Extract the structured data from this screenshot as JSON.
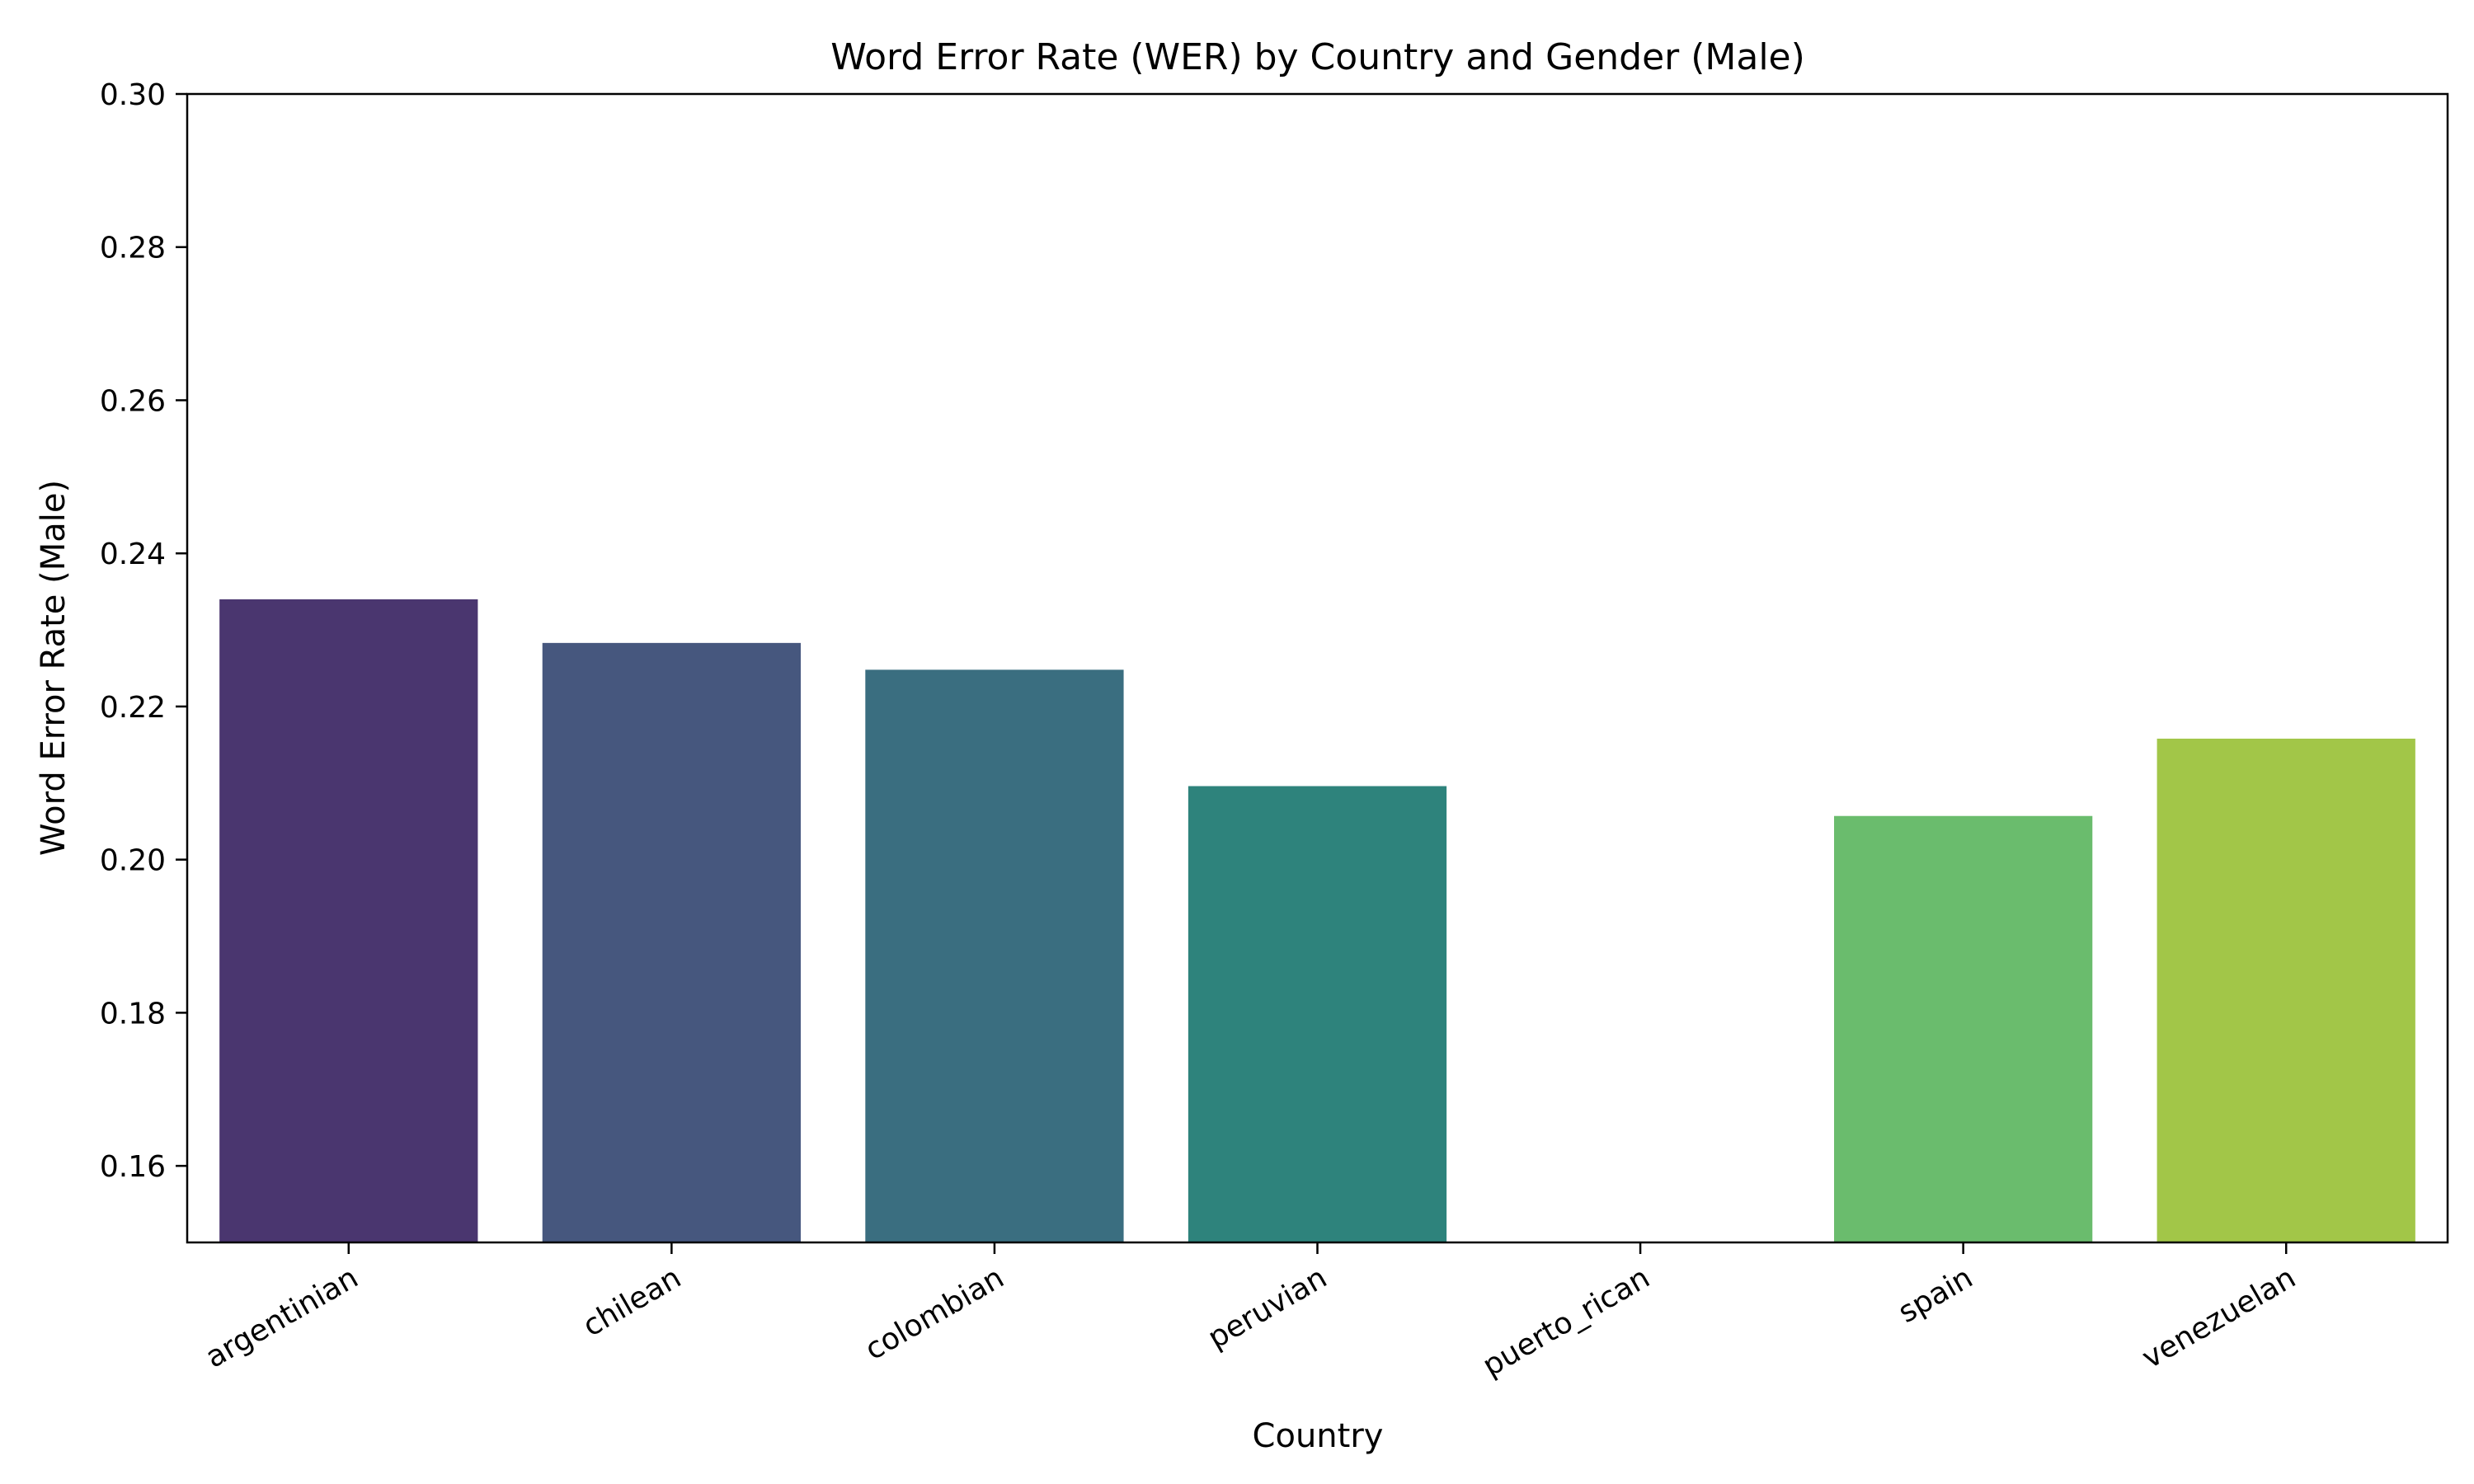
{
  "chart_data": {
    "type": "bar",
    "title": "Word Error Rate (WER) by Country and Gender (Male)",
    "xlabel": "Country",
    "ylabel": "Word Error Rate (Male)",
    "ylim": [
      0.15,
      0.3
    ],
    "yticks": [
      "0.16",
      "0.18",
      "0.20",
      "0.22",
      "0.24",
      "0.26",
      "0.28",
      "0.30"
    ],
    "grid": false,
    "categories": [
      "argentinian",
      "chilean",
      "colombian",
      "peruvian",
      "puerto_rican",
      "spain",
      "venezuelan"
    ],
    "values": [
      0.234,
      0.2283,
      0.2248,
      0.2096,
      null,
      0.2057,
      0.2158
    ],
    "colors": [
      "#4a366f",
      "#46577e",
      "#3a6e80",
      "#2e837c",
      "#48a46b",
      "#6abc6d",
      "#a2c648"
    ]
  }
}
